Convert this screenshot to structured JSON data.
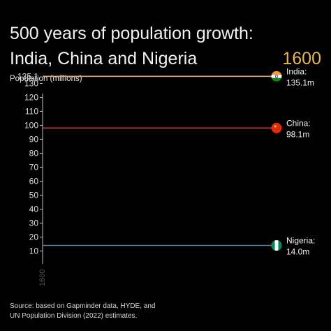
{
  "header": {
    "title_line1": "500 years of population growth:",
    "title_line2": "India, China and Nigeria",
    "year": "1600"
  },
  "chart_data": {
    "type": "line",
    "title": "500 years of population growth: India, China and Nigeria",
    "ylabel": "Population  (millions)",
    "ylim": [
      0,
      135.1
    ],
    "y_ticks": [
      10,
      20,
      30,
      40,
      50,
      60,
      70,
      80,
      90,
      100,
      110,
      120,
      130
    ],
    "y_max_label": "135.1",
    "x_ticks": [
      "1600"
    ],
    "series": [
      {
        "name": "India",
        "x": [
          1600
        ],
        "values": [
          135.1
        ],
        "label_value": "135.1m",
        "color": "#f4a460",
        "flag": "india-flag"
      },
      {
        "name": "China",
        "x": [
          1600
        ],
        "values": [
          98.1
        ],
        "label_value": "98.1m",
        "color": "#d9363e",
        "flag": "china-flag"
      },
      {
        "name": "Nigeria",
        "x": [
          1600
        ],
        "values": [
          14.0
        ],
        "label_value": "14.0m",
        "color": "#3f7fbf",
        "flag": "nigeria-flag"
      }
    ]
  },
  "source": {
    "line1": "Source: based on Gapminder data, HYDE, and",
    "line2": "UN Population Division (2022) estimates."
  }
}
